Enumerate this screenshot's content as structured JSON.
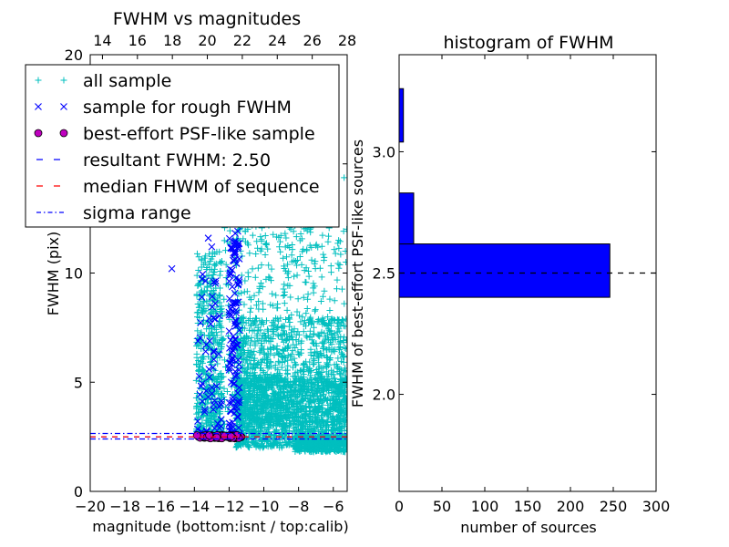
{
  "chart_data": [
    {
      "type": "scatter",
      "title": "FWHM vs magnitudes",
      "xlabel": "magnitude (bottom:isnt / top:calib)",
      "ylabel": "FWHM (pix)",
      "xlim": [
        -20,
        -5.2
      ],
      "ylim": [
        0,
        20
      ],
      "xticks": [
        -20,
        -18,
        -16,
        -14,
        -12,
        -10,
        -8,
        -6
      ],
      "xtick_labels": [
        "−20",
        "−18",
        "−16",
        "−14",
        "−12",
        "−10",
        "−8",
        "−6"
      ],
      "yticks": [
        0,
        5,
        10,
        15,
        20
      ],
      "ytick_labels": [
        "0",
        "5",
        "10",
        "15",
        "20"
      ],
      "top_axis": {
        "xlim": [
          13.3,
          28.0
        ],
        "ticks": [
          14,
          16,
          18,
          20,
          22,
          24,
          26,
          28
        ],
        "labels": [
          "14",
          "16",
          "18",
          "20",
          "22",
          "24",
          "26",
          "28"
        ]
      },
      "legend": {
        "position": "upper-left",
        "entries": [
          {
            "label": "all sample",
            "marker": "+",
            "color": "#00bfbf"
          },
          {
            "label": "sample for rough FWHM",
            "marker": "x",
            "color": "#0000ff"
          },
          {
            "label": "best-effort PSF-like sample",
            "marker": "o",
            "color": "#bf00bf"
          },
          {
            "label": "resultant FWHM: 2.50",
            "style": "dashed",
            "color": "#0000ff"
          },
          {
            "label": "median FHWM of sequence",
            "style": "dashed",
            "color": "#ff0000"
          },
          {
            "label": "sigma range",
            "style": "dashdot",
            "color": "#0000ff"
          }
        ]
      },
      "series": [
        {
          "name": "all sample",
          "color": "#00bfbf",
          "clusters": [
            {
              "x": [
                -13.9,
                -12.4
              ],
              "y": [
                2.5,
                11.0
              ],
              "density": "moderate"
            },
            {
              "x": [
                -12.4,
                -11.6
              ],
              "y": [
                2.5,
                14.0
              ],
              "density": "sparse"
            },
            {
              "x": [
                -11.6,
                -5.2
              ],
              "y": [
                1.9,
                12.5
              ],
              "density": "dense, strongest near 2-5 pix"
            }
          ]
        },
        {
          "name": "sample for rough FWHM",
          "color": "#0000ff",
          "points": [
            [
              -15.3,
              10.2
            ],
            [
              -13.6,
              12.5
            ],
            [
              -13.2,
              11.6
            ],
            [
              -13.0,
              11.2
            ],
            [
              -12.8,
              7.9
            ],
            [
              -12.6,
              6.3
            ],
            [
              -12.0,
              8.2
            ],
            [
              -11.8,
              8.6
            ],
            [
              -11.6,
              7.8
            ],
            [
              -11.5,
              6.7
            ]
          ],
          "clusters": [
            {
              "x": [
                -13.9,
                -12.4
              ],
              "y": [
                2.6,
                10.0
              ],
              "density": "sparse"
            },
            {
              "x": [
                -12.0,
                -11.4
              ],
              "y": [
                2.6,
                12.0
              ],
              "density": "moderate"
            }
          ]
        },
        {
          "name": "best-effort PSF-like sample",
          "color": "#bf00bf",
          "x_range": [
            -13.9,
            -11.3
          ],
          "y": 2.5
        }
      ],
      "hlines": [
        {
          "name": "resultant FWHM",
          "y": 2.5,
          "style": "dashed",
          "color": "#0000ff"
        },
        {
          "name": "median FHWM of sequence",
          "y": 2.5,
          "style": "dashed",
          "color": "#ff0000"
        },
        {
          "name": "sigma range upper",
          "y": 2.65,
          "style": "dashdot",
          "color": "#0000ff"
        },
        {
          "name": "sigma range lower",
          "y": 2.4,
          "style": "dashdot",
          "color": "#0000ff"
        }
      ]
    },
    {
      "type": "bar",
      "orientation": "horizontal",
      "title": "histogram of FWHM",
      "xlabel": "number of sources",
      "ylabel": "FWHM of best-effort PSF-like sources",
      "xlim": [
        0,
        300
      ],
      "ylim": [
        1.6,
        3.4
      ],
      "xticks": [
        0,
        50,
        100,
        150,
        200,
        250,
        300
      ],
      "xtick_labels": [
        "0",
        "50",
        "100",
        "150",
        "200",
        "250",
        "300"
      ],
      "yticks": [
        2.0,
        2.5,
        3.0
      ],
      "ytick_labels": [
        "2.0",
        "2.5",
        "3.0"
      ],
      "bar_color": "#0000ff",
      "bins": [
        {
          "y0": 2.4,
          "y1": 2.62,
          "count": 246
        },
        {
          "y0": 2.62,
          "y1": 2.83,
          "count": 17
        },
        {
          "y0": 3.04,
          "y1": 3.26,
          "count": 5
        }
      ],
      "hline": {
        "y": 2.5,
        "style": "dashed",
        "color": "#000000"
      }
    }
  ]
}
